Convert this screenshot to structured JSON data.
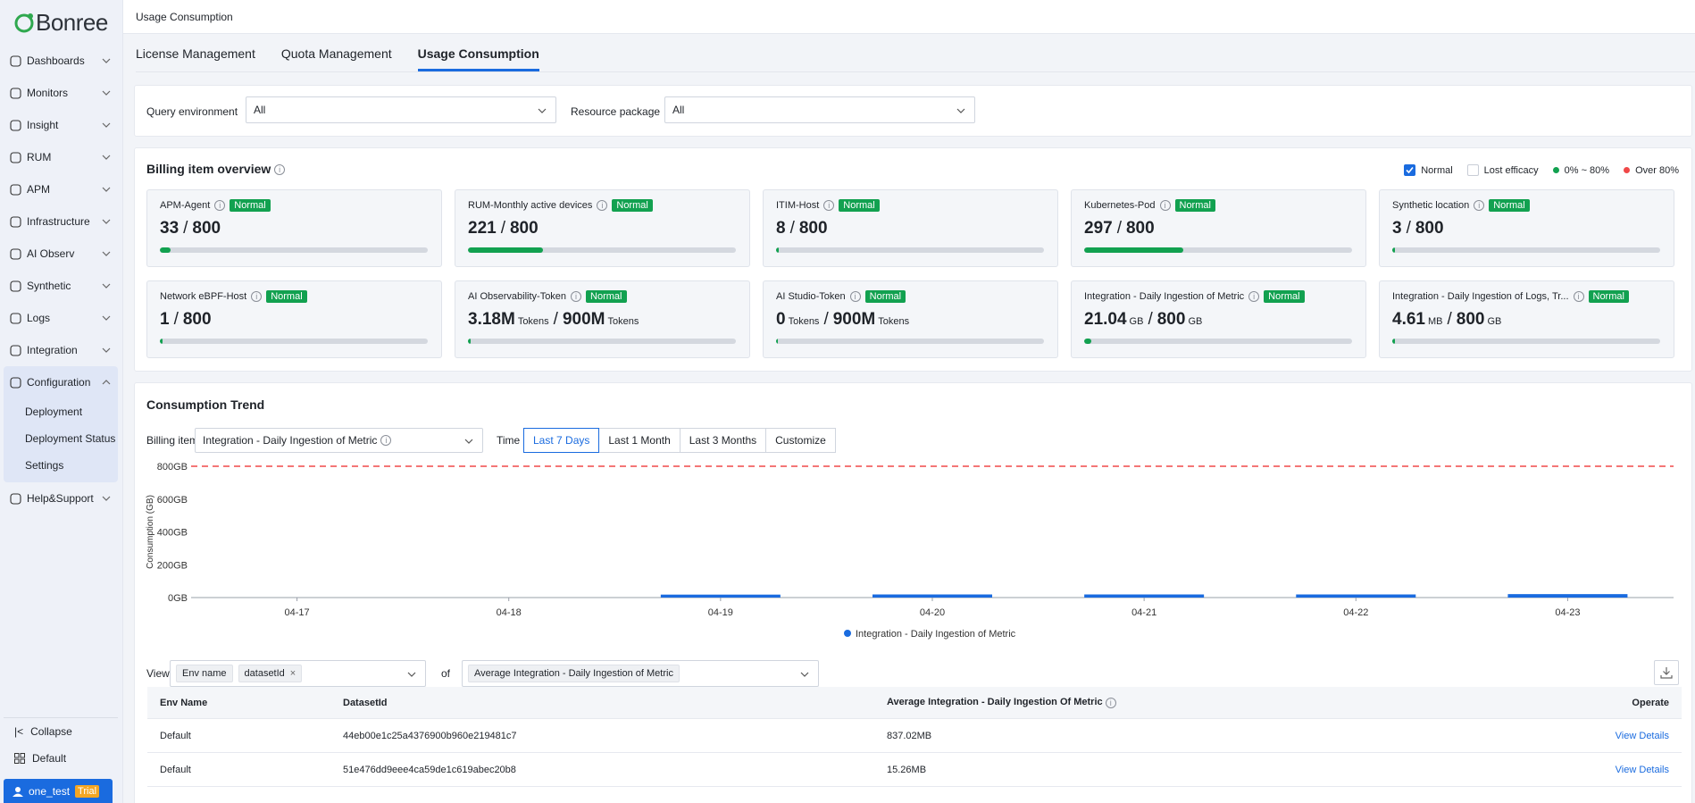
{
  "brand": {
    "name": "Bonree"
  },
  "sidebar": {
    "items": [
      {
        "label": "Dashboards",
        "icon": "dashboard-icon"
      },
      {
        "label": "Monitors",
        "icon": "monitor-icon"
      },
      {
        "label": "Insight",
        "icon": "insight-icon"
      },
      {
        "label": "RUM",
        "icon": "user-icon"
      },
      {
        "label": "APM",
        "icon": "apm-icon"
      },
      {
        "label": "Infrastructure",
        "icon": "infrastructure-icon"
      },
      {
        "label": "AI Observ",
        "icon": "ai-icon"
      },
      {
        "label": "Synthetic",
        "icon": "synthetic-icon"
      },
      {
        "label": "Logs",
        "icon": "logs-icon"
      },
      {
        "label": "Integration",
        "icon": "integration-icon"
      }
    ],
    "config": {
      "label": "Configuration",
      "subitems": [
        "Deployment",
        "Deployment Status",
        "Settings"
      ]
    },
    "help": {
      "label": "Help&Support"
    },
    "collapse": "Collapse",
    "workspace": "Default",
    "user": "one_test",
    "trial": "Trial"
  },
  "header": {
    "breadcrumb": "Usage Consumption"
  },
  "tabs": [
    "License Management",
    "Quota Management",
    "Usage Consumption"
  ],
  "filters": {
    "env_label": "Query environment",
    "env_value": "All",
    "pkg_label": "Resource package",
    "pkg_value": "All"
  },
  "overview": {
    "title": "Billing item overview",
    "legend": {
      "normal": "Normal",
      "lost": "Lost efficacy",
      "low": "0% ~ 80%",
      "high": "Over 80%",
      "low_color": "#12a150",
      "high_color": "#f04848"
    },
    "tiles": [
      {
        "name": "APM-Agent",
        "status": "Normal",
        "used": "33",
        "used_unit": "",
        "total": "800",
        "total_unit": "",
        "ratio": 0.04
      },
      {
        "name": "RUM-Monthly active devices",
        "status": "Normal",
        "used": "221",
        "used_unit": "",
        "total": "800",
        "total_unit": "",
        "ratio": 0.28
      },
      {
        "name": "ITIM-Host",
        "status": "Normal",
        "used": "8",
        "used_unit": "",
        "total": "800",
        "total_unit": "",
        "ratio": 0.01
      },
      {
        "name": "Kubernetes-Pod",
        "status": "Normal",
        "used": "297",
        "used_unit": "",
        "total": "800",
        "total_unit": "",
        "ratio": 0.37
      },
      {
        "name": "Synthetic location",
        "status": "Normal",
        "used": "3",
        "used_unit": "",
        "total": "800",
        "total_unit": "",
        "ratio": 0.01
      },
      {
        "name": "Network eBPF-Host",
        "status": "Normal",
        "used": "1",
        "used_unit": "",
        "total": "800",
        "total_unit": "",
        "ratio": 0.01
      },
      {
        "name": "AI Observability-Token",
        "status": "Normal",
        "used": "3.18M",
        "used_unit": "Tokens",
        "total": "900M",
        "total_unit": "Tokens",
        "ratio": 0.01
      },
      {
        "name": "AI Studio-Token",
        "status": "Normal",
        "used": "0",
        "used_unit": "Tokens",
        "total": "900M",
        "total_unit": "Tokens",
        "ratio": 0.0
      },
      {
        "name": "Integration - Daily Ingestion of Metric",
        "status": "Normal",
        "used": "21.04",
        "used_unit": "GB",
        "total": "800",
        "total_unit": "GB",
        "ratio": 0.026
      },
      {
        "name": "Integration - Daily Ingestion of Logs, Tr...",
        "status": "Normal",
        "used": "4.61",
        "used_unit": "MB",
        "total": "800",
        "total_unit": "GB",
        "ratio": 0.01
      }
    ]
  },
  "trend": {
    "title": "Consumption Trend",
    "billing_label": "Billing item",
    "billing_value": "Integration - Daily Ingestion of Metric",
    "time_label": "Time",
    "time_options": [
      "Last 7 Days",
      "Last 1 Month",
      "Last 3 Months",
      "Customize"
    ],
    "time_active": 0
  },
  "chart_data": {
    "type": "bar",
    "categories": [
      "04-17",
      "04-18",
      "04-19",
      "04-20",
      "04-21",
      "04-22",
      "04-23"
    ],
    "series": [
      {
        "name": "Integration - Daily Ingestion of Metric",
        "values": [
          0,
          0,
          18,
          19,
          19,
          19,
          21
        ],
        "color": "#1a6bdf"
      }
    ],
    "ylabel": "Consumption (GB)",
    "yticks": [
      "0GB",
      "200GB",
      "400GB",
      "600GB",
      "800GB"
    ],
    "ylim": [
      0,
      800
    ],
    "limit_line": 800,
    "limit_color": "#f04848",
    "legend": "bottom-center"
  },
  "view": {
    "label": "View",
    "tags": [
      "Env name",
      "datasetId"
    ],
    "of_label": "of",
    "metric_tag": "Average Integration - Daily Ingestion of Metric"
  },
  "table": {
    "headers": [
      "Env Name",
      "DatasetId",
      "Average Integration - Daily Ingestion Of Metric",
      "Operate"
    ],
    "rows": [
      {
        "env": "Default",
        "dataset": "44eb00e1c25a4376900b960e219481c7",
        "avg": "837.02MB",
        "op": "View Details"
      },
      {
        "env": "Default",
        "dataset": "51e476dd9eee4ca59de1c619abec20b8",
        "avg": "15.26MB",
        "op": "View Details"
      }
    ]
  }
}
